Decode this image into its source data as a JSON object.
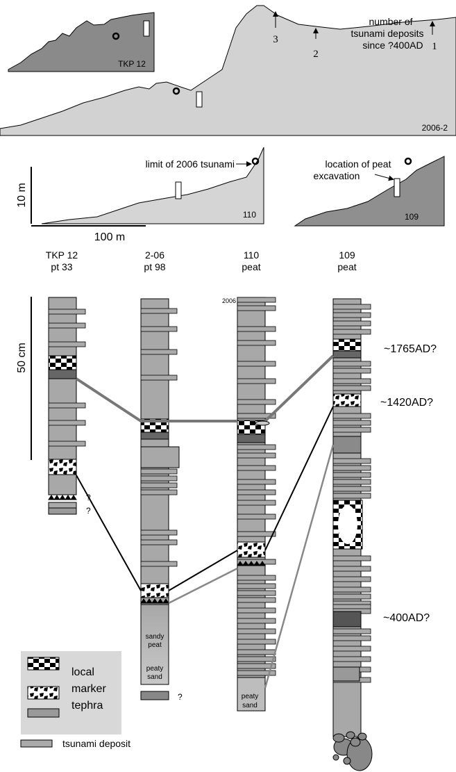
{
  "profiles": [
    {
      "label": "TKP 12"
    },
    {
      "label": "2006-2",
      "annotation": [
        "number of",
        "tsunami deposits",
        "since ?400AD"
      ],
      "arrows": [
        "3",
        "2",
        "1"
      ]
    },
    {
      "label": "110",
      "annotation": "limit of 2006 tsunami"
    },
    {
      "label": "109",
      "annotation": [
        "location of peat",
        "excavation"
      ]
    }
  ],
  "scale": {
    "vertical": "10 m",
    "horizontal": "100 m"
  },
  "columns": [
    {
      "title": [
        "TKP 12",
        "pt 33"
      ],
      "notes": [
        "?",
        "?"
      ]
    },
    {
      "title": [
        "2-06",
        "pt 98"
      ],
      "notes": [
        "?"
      ],
      "units": [
        [
          "sandy",
          "peat"
        ],
        [
          "peaty",
          "sand"
        ]
      ]
    },
    {
      "title": [
        "110",
        "peat"
      ],
      "top": "2006",
      "units": [
        [
          "peaty",
          "sand"
        ]
      ]
    },
    {
      "title": [
        "109",
        "peat"
      ],
      "ages": [
        "~1765AD?",
        "~1420AD?",
        "~400AD?"
      ]
    }
  ],
  "core_scale": "50 cm",
  "legend": {
    "marker": [
      "local",
      "marker",
      "tephra"
    ],
    "tsunami": "tsunami deposit"
  }
}
